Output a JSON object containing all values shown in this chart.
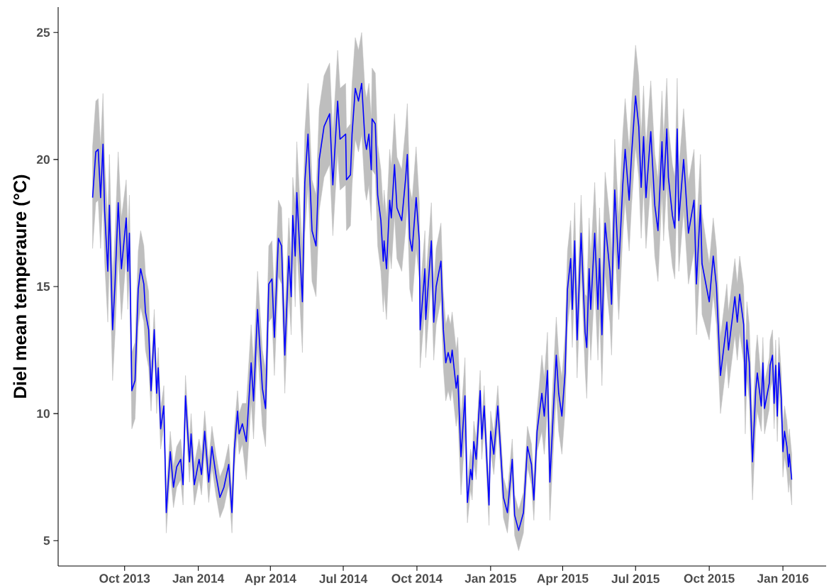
{
  "chart_data": {
    "type": "line",
    "ylabel": "Diel mean temperaure (°C)",
    "xlim": [
      "2013-07-10",
      "2016-02-24"
    ],
    "ylim": [
      4,
      26
    ],
    "yticks": [
      5,
      10,
      15,
      20,
      25
    ],
    "xticks": [
      {
        "value": "2013-10-01",
        "label": "Oct 2013"
      },
      {
        "value": "2014-01-01",
        "label": "Jan 2014"
      },
      {
        "value": "2014-04-01",
        "label": "Apr 2014"
      },
      {
        "value": "2014-07-01",
        "label": "Jul 2014"
      },
      {
        "value": "2014-10-01",
        "label": "Oct 2014"
      },
      {
        "value": "2015-01-01",
        "label": "Jan 2015"
      },
      {
        "value": "2015-04-01",
        "label": "Apr 2015"
      },
      {
        "value": "2015-07-01",
        "label": "Jul 2015"
      },
      {
        "value": "2015-10-01",
        "label": "Oct 2015"
      },
      {
        "value": "2016-01-01",
        "label": "Jan 2016"
      }
    ],
    "grid": false,
    "legend": false,
    "marker": "none",
    "series": [
      {
        "color": "#0000ff",
        "x": [
          "2013-08-22",
          "2013-08-26",
          "2013-08-29",
          "2013-09-01",
          "2013-09-04",
          "2013-09-06",
          "2013-09-10",
          "2013-09-12",
          "2013-09-16",
          "2013-09-19",
          "2013-09-23",
          "2013-09-27",
          "2013-10-03",
          "2013-10-05",
          "2013-10-07",
          "2013-10-10",
          "2013-10-14",
          "2013-10-18",
          "2013-10-21",
          "2013-10-25",
          "2013-10-27",
          "2013-10-31",
          "2013-11-03",
          "2013-11-07",
          "2013-11-10",
          "2013-11-12",
          "2013-11-15",
          "2013-11-19",
          "2013-11-22",
          "2013-11-27",
          "2013-12-01",
          "2013-12-05",
          "2013-12-10",
          "2013-12-13",
          "2013-12-16",
          "2013-12-21",
          "2013-12-23",
          "2013-12-27",
          "2014-01-02",
          "2014-01-05",
          "2014-01-09",
          "2014-01-14",
          "2014-01-18",
          "2014-01-23",
          "2014-01-28",
          "2014-02-02",
          "2014-02-08",
          "2014-02-12",
          "2014-02-15",
          "2014-02-19",
          "2014-02-21",
          "2014-02-25",
          "2014-03-02",
          "2014-03-08",
          "2014-03-11",
          "2014-03-16",
          "2014-03-22",
          "2014-03-26",
          "2014-03-30",
          "2014-04-03",
          "2014-04-06",
          "2014-04-11",
          "2014-04-15",
          "2014-04-19",
          "2014-04-24",
          "2014-04-27",
          "2014-04-29",
          "2014-05-02",
          "2014-05-04",
          "2014-05-11",
          "2014-05-14",
          "2014-05-18",
          "2014-05-23",
          "2014-05-28",
          "2014-06-01",
          "2014-06-07",
          "2014-06-14",
          "2014-06-18",
          "2014-06-24",
          "2014-06-27",
          "2014-07-04",
          "2014-07-05",
          "2014-07-10",
          "2014-07-12",
          "2014-07-16",
          "2014-07-20",
          "2014-07-24",
          "2014-07-28",
          "2014-07-30",
          "2014-08-02",
          "2014-08-05",
          "2014-08-06",
          "2014-08-10",
          "2014-08-13",
          "2014-08-17",
          "2014-08-20",
          "2014-08-21",
          "2014-08-24",
          "2014-08-28",
          "2014-08-30",
          "2014-09-03",
          "2014-09-06",
          "2014-09-12",
          "2014-09-17",
          "2014-09-19",
          "2014-09-22",
          "2014-09-25",
          "2014-09-30",
          "2014-10-04",
          "2014-10-05",
          "2014-10-11",
          "2014-10-12",
          "2014-10-19",
          "2014-10-22",
          "2014-10-25",
          "2014-10-31",
          "2014-11-03",
          "2014-11-06",
          "2014-11-09",
          "2014-11-12",
          "2014-11-14",
          "2014-11-19",
          "2014-11-21",
          "2014-11-25",
          "2014-11-30",
          "2014-12-03",
          "2014-12-07",
          "2014-12-09",
          "2014-12-11",
          "2014-12-14",
          "2014-12-19",
          "2014-12-21",
          "2014-12-24",
          "2014-12-30",
          "2015-01-01",
          "2015-01-05",
          "2015-01-10",
          "2015-01-13",
          "2015-01-17",
          "2015-01-22",
          "2015-01-28",
          "2015-01-31",
          "2015-02-05",
          "2015-02-11",
          "2015-02-16",
          "2015-02-21",
          "2015-02-24",
          "2015-02-28",
          "2015-03-06",
          "2015-03-09",
          "2015-03-13",
          "2015-03-16",
          "2015-03-20",
          "2015-03-24",
          "2015-03-27",
          "2015-03-31",
          "2015-04-04",
          "2015-04-07",
          "2015-04-11",
          "2015-04-13",
          "2015-04-16",
          "2015-04-19",
          "2015-04-24",
          "2015-04-29",
          "2015-05-01",
          "2015-05-04",
          "2015-05-06",
          "2015-05-11",
          "2015-05-15",
          "2015-05-17",
          "2015-05-20",
          "2015-05-24",
          "2015-05-30",
          "2015-06-01",
          "2015-06-05",
          "2015-06-10",
          "2015-06-15",
          "2015-06-18",
          "2015-06-23",
          "2015-06-26",
          "2015-07-01",
          "2015-07-05",
          "2015-07-08",
          "2015-07-11",
          "2015-07-14",
          "2015-07-20",
          "2015-07-25",
          "2015-07-29",
          "2015-08-03",
          "2015-08-05",
          "2015-08-09",
          "2015-08-11",
          "2015-08-16",
          "2015-08-19",
          "2015-08-22",
          "2015-08-24",
          "2015-08-30",
          "2015-09-01",
          "2015-09-05",
          "2015-09-12",
          "2015-09-15",
          "2015-09-20",
          "2015-09-22",
          "2015-10-01",
          "2015-10-06",
          "2015-10-10",
          "2015-10-15",
          "2015-10-23",
          "2015-10-25",
          "2015-10-30",
          "2015-11-02",
          "2015-11-05",
          "2015-11-08",
          "2015-11-13",
          "2015-11-15",
          "2015-11-17",
          "2015-11-20",
          "2015-11-24",
          "2015-11-28",
          "2015-11-30",
          "2015-12-05",
          "2015-12-07",
          "2015-12-09",
          "2015-12-12",
          "2015-12-15",
          "2015-12-16",
          "2015-12-19",
          "2015-12-21",
          "2015-12-23",
          "2015-12-25",
          "2015-12-27",
          "2015-12-30",
          "2016-01-01",
          "2016-01-03",
          "2016-01-06",
          "2016-01-08",
          "2016-01-09",
          "2016-01-12"
        ],
        "values": [
          18.5,
          20.3,
          20.4,
          18.5,
          20.6,
          18.0,
          15.6,
          18.2,
          13.3,
          15.1,
          18.3,
          15.7,
          17.7,
          15.6,
          17.1,
          10.9,
          11.3,
          14.9,
          15.7,
          15.1,
          14.0,
          13.3,
          10.9,
          13.3,
          10.8,
          11.8,
          9.4,
          10.3,
          6.1,
          8.5,
          7.1,
          7.9,
          8.2,
          7.2,
          10.7,
          8.1,
          9.2,
          7.2,
          8.2,
          7.6,
          9.3,
          7.3,
          8.7,
          7.6,
          6.7,
          7.1,
          8.0,
          6.1,
          8.6,
          10.1,
          9.2,
          9.6,
          8.9,
          12.0,
          10.5,
          14.1,
          11.0,
          10.2,
          15.1,
          15.3,
          13.0,
          16.9,
          16.6,
          12.3,
          16.2,
          14.6,
          17.8,
          16.2,
          18.7,
          14.4,
          19.1,
          21.0,
          17.2,
          16.6,
          20.0,
          21.3,
          21.8,
          19.0,
          22.3,
          20.8,
          21.0,
          19.2,
          19.4,
          21.0,
          22.8,
          22.3,
          23.0,
          20.8,
          20.4,
          21.0,
          19.6,
          21.6,
          21.4,
          18.6,
          17.6,
          16.0,
          16.8,
          15.7,
          18.4,
          17.7,
          19.8,
          18.1,
          17.6,
          19.3,
          20.2,
          16.9,
          16.4,
          18.5,
          16.8,
          13.3,
          15.7,
          13.7,
          16.8,
          13.6,
          15.0,
          16.0,
          13.3,
          12.0,
          12.4,
          12.0,
          12.5,
          11.0,
          11.5,
          8.3,
          10.7,
          6.5,
          7.8,
          7.4,
          8.9,
          8.2,
          10.9,
          9.0,
          10.3,
          6.4,
          9.3,
          8.4,
          10.3,
          8.8,
          6.7,
          6.1,
          8.2,
          6.0,
          5.4,
          6.1,
          8.7,
          8.0,
          6.6,
          9.3,
          10.8,
          9.9,
          11.7,
          7.3,
          9.9,
          12.3,
          10.8,
          9.9,
          11.6,
          14.9,
          16.1,
          14.1,
          16.8,
          12.9,
          17.1,
          13.2,
          12.6,
          15.7,
          14.1,
          17.1,
          14.1,
          16.1,
          13.1,
          17.5,
          15.6,
          14.3,
          18.8,
          15.7,
          19.0,
          20.4,
          18.4,
          20.2,
          22.5,
          21.3,
          18.9,
          20.9,
          18.5,
          21.1,
          18.2,
          17.2,
          20.7,
          18.8,
          21.2,
          19.3,
          17.8,
          17.3,
          21.2,
          17.6,
          20.0,
          19.1,
          17.1,
          18.4,
          15.1,
          18.2,
          15.9,
          14.4,
          16.2,
          15.0,
          11.5,
          13.6,
          12.5,
          13.8,
          14.6,
          13.6,
          14.7,
          13.5,
          10.7,
          12.9,
          12.0,
          8.1,
          10.9,
          11.6,
          10.3,
          12.0,
          10.2,
          10.7,
          11.2,
          11.9,
          12.3,
          10.4,
          11.9,
          9.9,
          12.0,
          10.6,
          8.5,
          9.3,
          8.7,
          7.9,
          8.4,
          7.4
        ],
        "lower": [
          16.5,
          18.3,
          18.4,
          16.5,
          18.6,
          16.0,
          13.6,
          16.2,
          11.3,
          13.1,
          16.3,
          13.7,
          16.2,
          14.1,
          15.6,
          9.4,
          9.8,
          13.4,
          14.2,
          13.6,
          12.5,
          11.8,
          10.1,
          12.5,
          10.0,
          11.0,
          8.6,
          9.5,
          5.3,
          7.7,
          6.3,
          7.1,
          7.4,
          6.4,
          9.9,
          7.3,
          8.4,
          6.4,
          7.4,
          6.8,
          8.5,
          6.5,
          7.9,
          6.8,
          5.9,
          6.3,
          7.2,
          5.3,
          7.8,
          9.3,
          8.4,
          8.8,
          7.4,
          10.5,
          9.0,
          12.6,
          9.5,
          8.7,
          13.6,
          13.8,
          11.5,
          15.4,
          15.1,
          10.8,
          14.7,
          13.1,
          16.3,
          14.2,
          16.7,
          12.4,
          17.1,
          19.0,
          15.2,
          14.6,
          18.0,
          19.3,
          19.8,
          17.0,
          20.3,
          18.8,
          19.0,
          17.2,
          17.4,
          19.0,
          20.8,
          20.3,
          21.0,
          18.8,
          18.4,
          19.0,
          17.6,
          19.6,
          19.4,
          16.6,
          15.6,
          14.0,
          14.8,
          13.7,
          16.4,
          15.7,
          17.8,
          16.1,
          15.6,
          17.3,
          18.2,
          14.9,
          14.4,
          16.5,
          15.3,
          11.8,
          14.2,
          12.2,
          15.3,
          12.1,
          13.5,
          14.5,
          11.8,
          10.5,
          10.9,
          10.5,
          11.0,
          9.5,
          10.0,
          6.8,
          9.2,
          5.7,
          7.0,
          6.6,
          8.1,
          7.4,
          10.1,
          8.2,
          9.5,
          5.6,
          8.5,
          7.6,
          9.5,
          8.0,
          5.9,
          5.3,
          7.4,
          5.2,
          4.6,
          5.3,
          7.9,
          7.2,
          5.8,
          8.5,
          9.3,
          8.4,
          10.2,
          5.8,
          8.4,
          10.8,
          9.3,
          8.4,
          10.1,
          13.4,
          14.6,
          12.6,
          15.3,
          11.4,
          15.6,
          11.7,
          10.6,
          13.7,
          12.1,
          15.1,
          12.1,
          14.1,
          11.1,
          15.5,
          13.6,
          12.3,
          16.8,
          13.7,
          17.0,
          18.4,
          16.4,
          18.2,
          20.5,
          19.3,
          16.9,
          18.9,
          16.5,
          19.1,
          16.2,
          15.2,
          18.7,
          16.8,
          19.2,
          17.3,
          15.8,
          15.3,
          19.2,
          15.6,
          18.0,
          17.1,
          15.1,
          16.4,
          13.1,
          16.2,
          13.9,
          12.9,
          14.7,
          13.5,
          10.0,
          12.1,
          11.0,
          12.3,
          13.1,
          12.1,
          13.2,
          12.0,
          9.2,
          11.4,
          10.5,
          6.6,
          9.4,
          10.1,
          9.3,
          11.0,
          9.2,
          9.7,
          10.2,
          10.9,
          11.3,
          9.4,
          10.9,
          8.9,
          11.0,
          9.6,
          7.5,
          8.3,
          7.7,
          6.9,
          7.4,
          6.4
        ],
        "upper": [
          20.5,
          22.3,
          22.4,
          20.5,
          22.6,
          20.0,
          17.6,
          20.2,
          15.3,
          17.1,
          20.3,
          17.7,
          19.2,
          17.1,
          18.6,
          12.4,
          12.8,
          16.4,
          17.2,
          16.6,
          15.5,
          14.8,
          11.7,
          14.1,
          11.6,
          12.6,
          10.2,
          11.1,
          6.9,
          9.3,
          7.9,
          8.7,
          9.0,
          8.0,
          11.5,
          8.9,
          10.0,
          8.0,
          9.0,
          8.4,
          10.1,
          8.1,
          9.5,
          8.4,
          7.5,
          7.9,
          8.8,
          6.9,
          9.4,
          10.9,
          10.0,
          10.4,
          10.4,
          13.5,
          12.0,
          15.6,
          12.5,
          11.7,
          16.6,
          16.8,
          14.5,
          18.4,
          18.1,
          13.8,
          17.7,
          16.1,
          19.3,
          18.2,
          20.7,
          16.4,
          21.1,
          23.0,
          19.2,
          18.6,
          22.0,
          23.3,
          23.8,
          21.0,
          24.3,
          22.8,
          23.0,
          21.2,
          21.4,
          23.0,
          24.8,
          24.3,
          25.0,
          22.8,
          22.4,
          23.0,
          21.6,
          23.6,
          23.4,
          20.6,
          19.6,
          18.0,
          18.8,
          17.7,
          20.4,
          19.7,
          21.8,
          20.1,
          19.6,
          21.3,
          22.2,
          18.9,
          18.4,
          20.5,
          18.3,
          14.8,
          17.2,
          15.2,
          18.3,
          15.1,
          16.5,
          17.5,
          14.8,
          13.5,
          13.9,
          13.5,
          14.0,
          12.5,
          13.0,
          9.8,
          12.2,
          7.3,
          8.6,
          8.2,
          9.7,
          9.0,
          11.7,
          9.8,
          11.1,
          7.2,
          10.1,
          9.2,
          11.1,
          9.6,
          7.5,
          6.9,
          9.0,
          6.8,
          6.2,
          6.9,
          9.5,
          8.8,
          7.4,
          10.1,
          12.3,
          11.4,
          13.2,
          8.8,
          11.4,
          13.8,
          12.3,
          11.4,
          13.1,
          16.4,
          17.6,
          15.6,
          18.3,
          14.4,
          18.6,
          14.7,
          14.6,
          17.7,
          16.1,
          19.1,
          16.1,
          18.1,
          15.1,
          19.5,
          17.6,
          16.3,
          20.8,
          17.7,
          21.0,
          22.4,
          20.4,
          22.2,
          24.5,
          23.3,
          20.9,
          22.9,
          20.5,
          23.1,
          20.2,
          19.2,
          22.7,
          20.8,
          23.2,
          21.3,
          19.8,
          19.3,
          23.2,
          19.6,
          22.0,
          21.1,
          19.1,
          20.4,
          17.1,
          20.2,
          17.9,
          15.9,
          17.7,
          16.5,
          13.0,
          15.1,
          14.0,
          15.3,
          16.1,
          15.1,
          16.2,
          15.0,
          12.2,
          14.4,
          13.5,
          9.6,
          12.4,
          13.1,
          11.3,
          13.0,
          11.2,
          11.7,
          12.2,
          12.9,
          13.3,
          11.4,
          12.9,
          10.9,
          13.0,
          11.6,
          9.5,
          10.3,
          9.7,
          8.9,
          9.4,
          8.4
        ]
      }
    ]
  }
}
